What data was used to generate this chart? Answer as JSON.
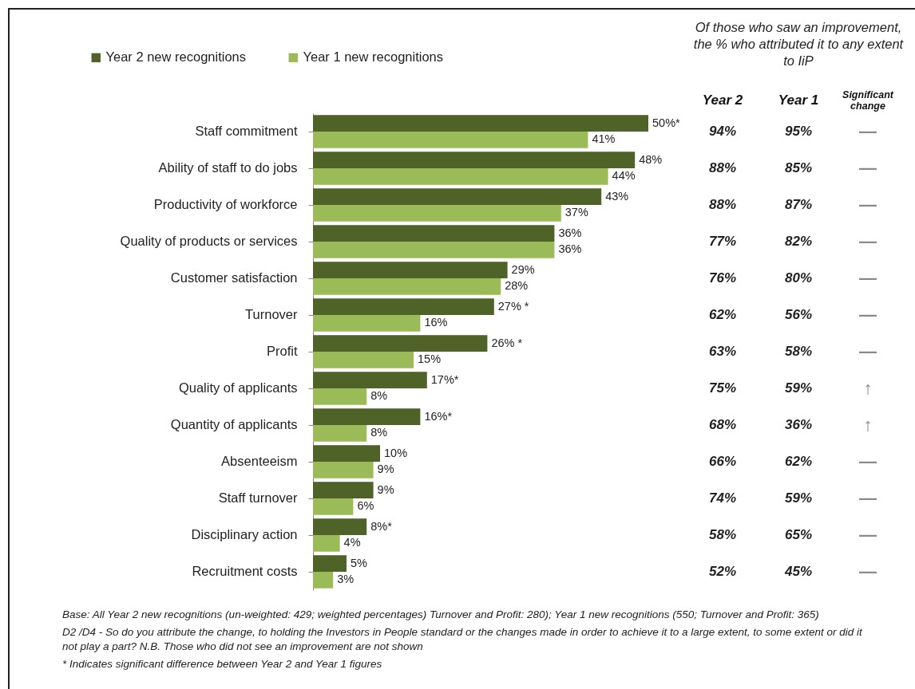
{
  "chart_data": [
    {
      "type": "bar",
      "orientation": "horizontal",
      "legend": "top left",
      "categories": [
        "Staff commitment",
        "Ability of staff to do jobs",
        "Productivity of workforce",
        "Quality of products or services",
        "Customer satisfaction",
        "Turnover",
        "Profit",
        "Quality of applicants",
        "Quantity of applicants",
        "Absenteeism",
        "Staff turnover",
        "Disciplinary action",
        "Recruitment costs"
      ],
      "series": [
        {
          "name": "Year 2 new recognitions",
          "color": "#4f6228",
          "values": [
            50,
            48,
            43,
            36,
            29,
            27,
            26,
            17,
            16,
            10,
            9,
            8,
            5
          ],
          "value_labels": [
            "50%*",
            "48%",
            "43%",
            "36%",
            "29%",
            "27% *",
            "26% *",
            "17%*",
            "16%*",
            "10%",
            "9%",
            "8%*",
            "5%"
          ]
        },
        {
          "name": "Year 1 new recognitions",
          "color": "#9bbb59",
          "values": [
            41,
            44,
            37,
            36,
            28,
            16,
            15,
            8,
            8,
            9,
            6,
            4,
            3
          ],
          "value_labels": [
            "41%",
            "44%",
            "37%",
            "36%",
            "28%",
            "16%",
            "15%",
            "8%",
            "8%",
            "9%",
            "6%",
            "4%",
            "3%"
          ]
        }
      ],
      "annotations": [
        "Base: All Year 2 new recognitions (un-weighted: 429; weighted percentages) Turnover and Profit: 280); Year 1 new recognitions (550; Turnover and Profit: 365)",
        "D2 /D4 - So do you attribute the change, to holding the Investors in People standard or the changes made in order to achieve it to a large extent, to some extent or did it not play a part? N.B. Those who did not see an improvement are not shown",
        "* Indicates significant difference between Year 2 and Year 1 figures"
      ]
    },
    {
      "type": "other",
      "title": "Of those who saw an improvement, the % who attributed it to any extent to IiP",
      "categories": [
        "Year 2",
        "Year 1",
        "Significant change"
      ],
      "annotations": [
        "94%",
        "95%",
        "—",
        "88%",
        "85%",
        "—",
        "88%",
        "87%",
        "—",
        "77%",
        "82%",
        "—",
        "76%",
        "80%",
        "—",
        "62%",
        "56%",
        "—",
        "63%",
        "58%",
        "—",
        "75%",
        "59%",
        "↑",
        "68%",
        "36%",
        "↑",
        "66%",
        "62%",
        "—",
        "74%",
        "59%",
        "—",
        "58%",
        "65%",
        "—",
        "52%",
        "45%",
        "—"
      ]
    }
  ]
}
